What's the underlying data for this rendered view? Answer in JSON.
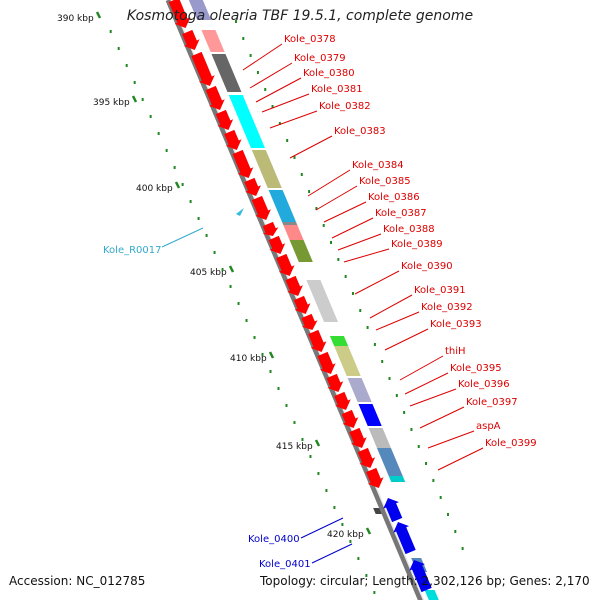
{
  "title": "Kosmotoga olearia TBF 19.5.1, complete genome",
  "accession": "Accession: NC_012785",
  "summary": "Topology: circular; Length: 2,302,126 bp; Genes: 2,170",
  "ruler_labels": [
    "390 kbp",
    "395 kbp",
    "400 kbp",
    "405 kbp",
    "410 kbp",
    "415 kbp",
    "420 kbp"
  ],
  "red_gene_labels": [
    "Kole_0378",
    "Kole_0379",
    "Kole_0380",
    "Kole_0381",
    "Kole_0382",
    "Kole_0383",
    "Kole_0384",
    "Kole_0385",
    "Kole_0386",
    "Kole_0387",
    "Kole_0388",
    "Kole_0389",
    "Kole_0390",
    "Kole_0391",
    "Kole_0392",
    "Kole_0393",
    "thiH",
    "Kole_0395",
    "Kole_0396",
    "Kole_0397",
    "aspA",
    "Kole_0399"
  ],
  "blue_gene_labels": [
    "Kole_0400",
    "Kole_0401"
  ],
  "rna_label": "Kole_R0017",
  "colors": {
    "forward_gene": "#ff0000",
    "reverse_gene": "#0000ee",
    "rna": "#33bbdd",
    "ruler_tick": "#228822",
    "backbone": "#999999",
    "label_red": "#dd0000",
    "label_blue": "#0000cc",
    "label_cyan": "#33aacc"
  },
  "cog_colors": [
    "#9999cc",
    "#ff9999",
    "#666666",
    "#00ffff",
    "#bbbb77",
    "#22aadd",
    "#888888",
    "#ff8888",
    "#779933",
    "#cccccc",
    "#33dd33",
    "#cccc88",
    "#aaaacc",
    "#0000ff",
    "#bbbbbb",
    "#5588bb",
    "#00cccc"
  ]
}
